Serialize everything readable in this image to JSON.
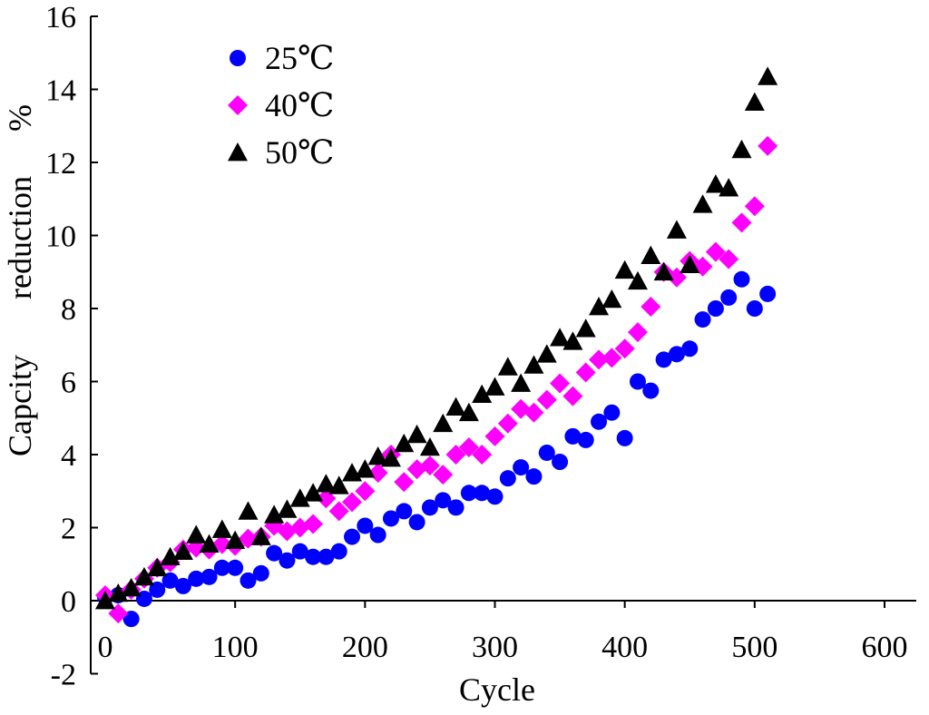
{
  "chart_data": {
    "type": "scatter",
    "title": "",
    "xlabel": "Cycle",
    "ylabel_parts": [
      "Capcity",
      "reduction",
      "%"
    ],
    "xlim": [
      0,
      600
    ],
    "ylim": [
      -2,
      16
    ],
    "xticks": [
      0,
      100,
      200,
      300,
      400,
      500,
      600
    ],
    "yticks": [
      -2,
      0,
      2,
      4,
      6,
      8,
      10,
      12,
      14,
      16
    ],
    "grid": false,
    "legend_position": "top-left",
    "series": [
      {
        "name": "25℃",
        "marker": "circle",
        "color": "#0000ff",
        "x": [
          0,
          10,
          20,
          30,
          40,
          50,
          60,
          70,
          80,
          90,
          100,
          110,
          120,
          130,
          140,
          150,
          160,
          170,
          180,
          190,
          200,
          210,
          220,
          230,
          240,
          250,
          260,
          270,
          280,
          290,
          300,
          310,
          320,
          330,
          340,
          350,
          360,
          370,
          380,
          390,
          400,
          410,
          420,
          430,
          440,
          450,
          460,
          470,
          480,
          490,
          500,
          510
        ],
        "y": [
          0.1,
          0.15,
          -0.5,
          0.05,
          0.3,
          0.55,
          0.4,
          0.6,
          0.65,
          0.9,
          0.9,
          0.55,
          0.75,
          1.3,
          1.1,
          1.35,
          1.2,
          1.2,
          1.35,
          1.75,
          2.05,
          1.8,
          2.25,
          2.45,
          2.15,
          2.55,
          2.75,
          2.55,
          2.95,
          2.95,
          2.85,
          3.35,
          3.65,
          3.4,
          4.05,
          3.8,
          4.5,
          4.4,
          4.9,
          5.15,
          4.45,
          6.0,
          5.75,
          6.6,
          6.75,
          6.9,
          7.7,
          8.0,
          8.3,
          8.8,
          8.0,
          8.4
        ]
      },
      {
        "name": "40℃",
        "marker": "diamond",
        "color": "#ff00ff",
        "x": [
          0,
          10,
          20,
          30,
          40,
          50,
          60,
          70,
          80,
          90,
          100,
          110,
          120,
          130,
          140,
          150,
          160,
          170,
          180,
          190,
          200,
          210,
          220,
          230,
          240,
          250,
          260,
          270,
          280,
          290,
          300,
          310,
          320,
          330,
          340,
          350,
          360,
          370,
          380,
          390,
          400,
          410,
          420,
          430,
          440,
          450,
          460,
          470,
          480,
          490,
          500,
          510
        ],
        "y": [
          0.15,
          -0.35,
          0.3,
          0.6,
          0.9,
          1.05,
          1.4,
          1.45,
          1.4,
          1.55,
          1.5,
          1.7,
          1.75,
          2.05,
          1.9,
          2.0,
          2.1,
          2.8,
          2.45,
          2.7,
          3.0,
          3.5,
          4.0,
          3.25,
          3.6,
          3.7,
          3.45,
          4.0,
          4.2,
          4.0,
          4.5,
          4.85,
          5.25,
          5.15,
          5.5,
          5.95,
          5.6,
          6.25,
          6.6,
          6.65,
          6.9,
          7.35,
          8.05,
          9.0,
          8.85,
          9.3,
          9.15,
          9.55,
          9.35,
          10.35,
          10.8,
          12.45
        ]
      },
      {
        "name": "50℃",
        "marker": "triangle",
        "color": "#000000",
        "x": [
          0,
          10,
          20,
          30,
          40,
          50,
          60,
          70,
          80,
          90,
          100,
          110,
          120,
          130,
          140,
          150,
          160,
          170,
          180,
          190,
          200,
          210,
          220,
          230,
          240,
          250,
          260,
          270,
          280,
          290,
          300,
          310,
          320,
          330,
          340,
          350,
          360,
          370,
          380,
          390,
          400,
          410,
          420,
          430,
          440,
          450,
          460,
          470,
          480,
          490,
          500,
          510
        ],
        "y": [
          0.0,
          0.2,
          0.35,
          0.65,
          0.9,
          1.2,
          1.35,
          1.8,
          1.55,
          1.95,
          1.65,
          2.45,
          1.75,
          2.35,
          2.5,
          2.8,
          2.95,
          3.2,
          3.15,
          3.5,
          3.6,
          3.95,
          3.9,
          4.3,
          4.55,
          4.2,
          4.85,
          5.3,
          5.15,
          5.65,
          5.85,
          6.4,
          5.95,
          6.45,
          6.75,
          7.2,
          7.1,
          7.45,
          8.05,
          8.25,
          9.05,
          8.75,
          9.45,
          9.0,
          10.15,
          9.2,
          10.85,
          11.4,
          11.3,
          12.35,
          13.65,
          14.35
        ]
      }
    ]
  }
}
